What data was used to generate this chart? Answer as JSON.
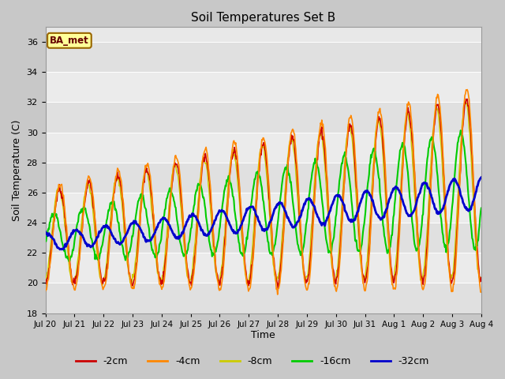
{
  "title": "Soil Temperatures Set B",
  "xlabel": "Time",
  "ylabel": "Soil Temperature (C)",
  "ylim": [
    18,
    37
  ],
  "yticks": [
    18,
    20,
    22,
    24,
    26,
    28,
    30,
    32,
    34,
    36
  ],
  "figsize": [
    6.4,
    4.8
  ],
  "dpi": 100,
  "label_text": "BA_met",
  "series": {
    "-2cm": {
      "color": "#cc0000",
      "lw": 1.2,
      "zorder": 3
    },
    "-4cm": {
      "color": "#ff8800",
      "lw": 1.2,
      "zorder": 4
    },
    "-8cm": {
      "color": "#cccc00",
      "lw": 1.2,
      "zorder": 3
    },
    "-16cm": {
      "color": "#00cc00",
      "lw": 1.5,
      "zorder": 3
    },
    "-32cm": {
      "color": "#0000cc",
      "lw": 2.0,
      "zorder": 5
    }
  },
  "xtick_labels": [
    "Jul 20",
    "Jul 21",
    "Jul 22",
    "Jul 23",
    "Jul 24",
    "Jul 25",
    "Jul 26",
    "Jul 27",
    "Jul 28",
    "Jul 29",
    "Jul 30",
    "Jul 31",
    "Aug 1",
    "Aug 2",
    "Aug 3",
    "Aug 4"
  ],
  "band_colors": [
    "#e0e0e0",
    "#ebebeb",
    "#e0e0e0",
    "#ebebeb",
    "#e0e0e0",
    "#ebebeb",
    "#e0e0e0",
    "#ebebeb",
    "#e0e0e0"
  ],
  "fig_facecolor": "#c8c8c8",
  "ax_facecolor": "#e8e8e8"
}
